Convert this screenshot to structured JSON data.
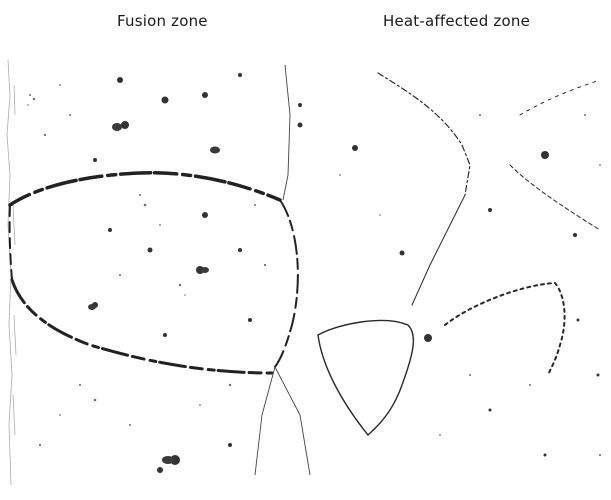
{
  "labels": {
    "fusion_zone": "Fusion zone",
    "heat_affected_zone": "Heat-affected zone"
  },
  "colors": {
    "background": "#ffffff",
    "ink": "#1a1a1a",
    "grain_boundary": "#2a2a2a",
    "speckle": "#555555"
  }
}
